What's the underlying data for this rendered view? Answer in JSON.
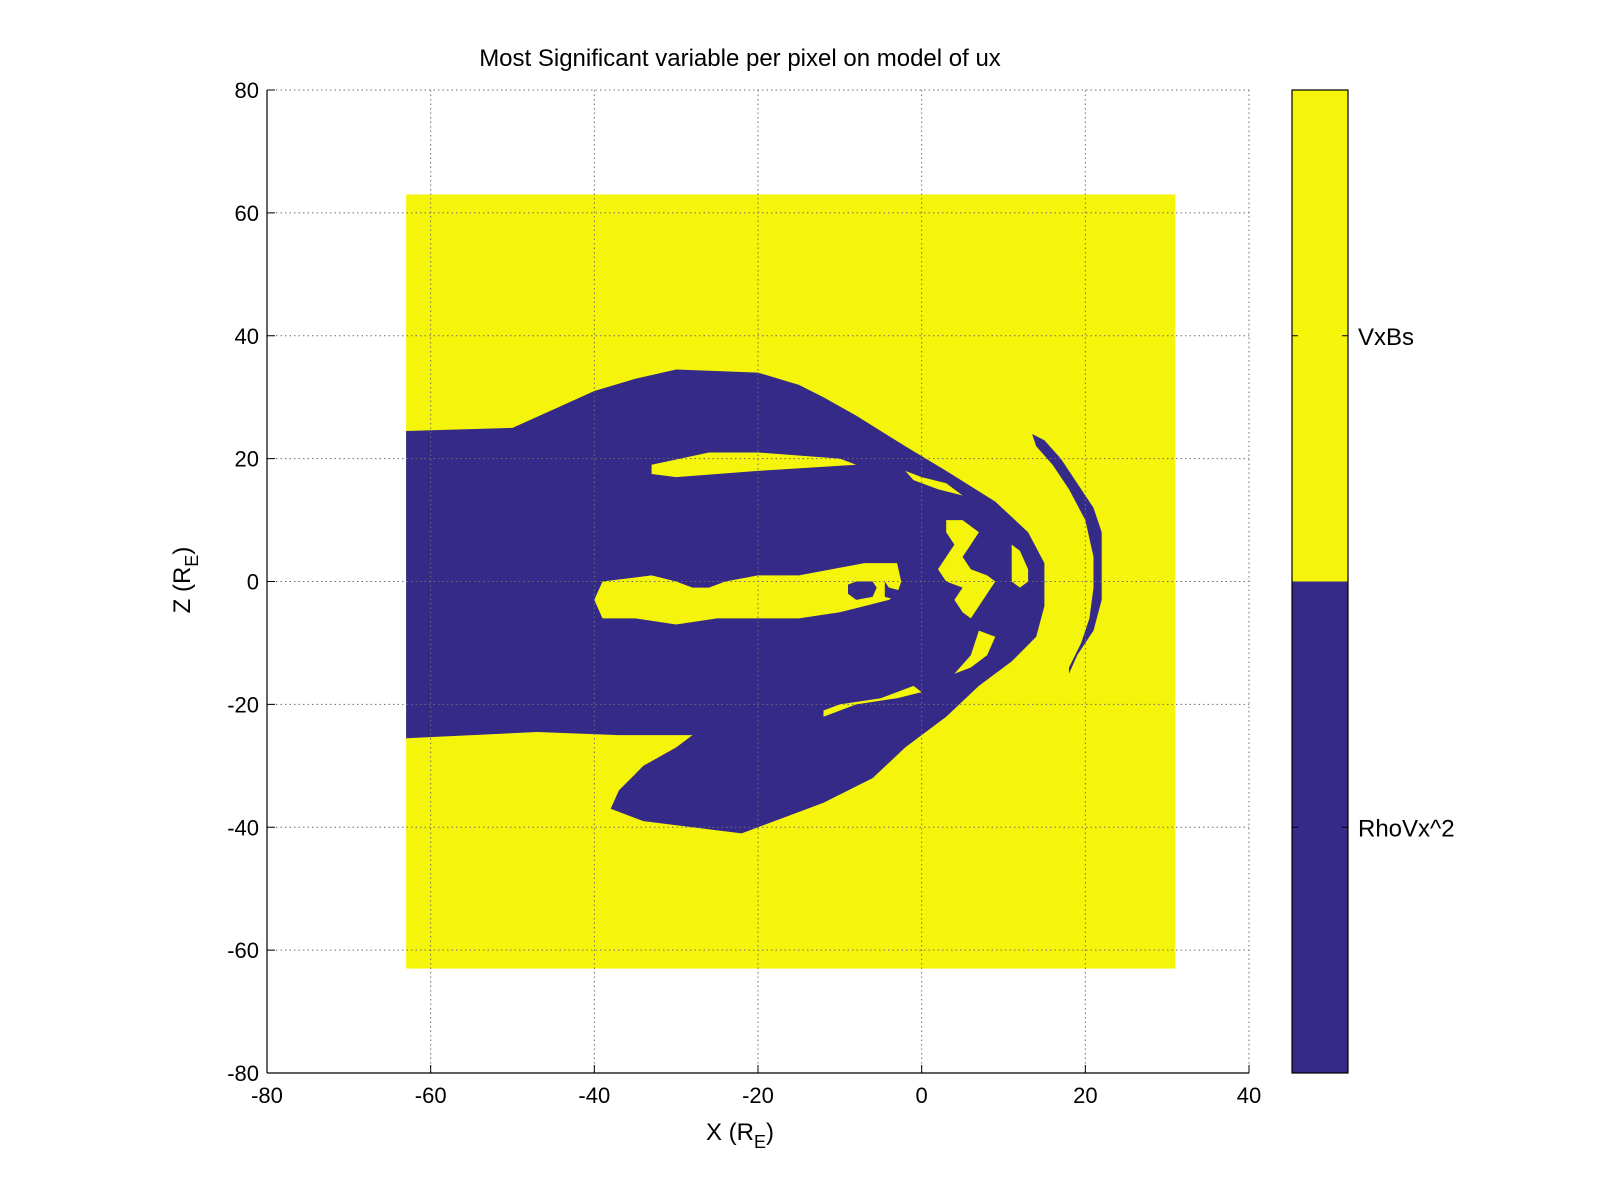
{
  "chart_data": {
    "type": "heatmap",
    "title": "Most Significant variable per pixel on model of ux",
    "xlabel": "X (R",
    "xlabel_sub": "E",
    "xlabel_end": ")",
    "ylabel": "Z (R",
    "ylabel_sub": "E",
    "ylabel_end": ")",
    "xlim": [
      -80,
      40
    ],
    "ylim": [
      -80,
      80
    ],
    "x_ticks": [
      -80,
      -60,
      -40,
      -20,
      0,
      20,
      40
    ],
    "y_ticks": [
      -80,
      -60,
      -40,
      -20,
      0,
      20,
      40,
      60,
      80
    ],
    "x_tick_labels": [
      "-80",
      "-60",
      "-40",
      "-20",
      "0",
      "20",
      "40"
    ],
    "y_tick_labels": [
      "-80",
      "-60",
      "-40",
      "-20",
      "0",
      "20",
      "40",
      "60",
      "80"
    ],
    "grid": true,
    "data_extent": {
      "x": [
        -63,
        31
      ],
      "z": [
        -63,
        63
      ]
    },
    "categories": [
      {
        "name": "VxBs",
        "color": "#f5f50c"
      },
      {
        "name": "RhoVx^2",
        "color": "#352a87"
      }
    ],
    "colorbar": {
      "labels": [
        "VxBs",
        "RhoVx^2"
      ],
      "colors": [
        "#f5f50c",
        "#352a87"
      ]
    },
    "regions": [
      {
        "category": "RhoVx^2",
        "outline": [
          [
            -63,
            24.5
          ],
          [
            -50,
            25
          ],
          [
            -45,
            28
          ],
          [
            -40,
            31
          ],
          [
            -35,
            33
          ],
          [
            -30,
            34.5
          ],
          [
            -20,
            34
          ],
          [
            -15,
            32
          ],
          [
            -12,
            30
          ],
          [
            -8,
            27
          ],
          [
            -2,
            22
          ],
          [
            3,
            18
          ],
          [
            9,
            13
          ],
          [
            13,
            8
          ],
          [
            15,
            3
          ],
          [
            15,
            -4
          ],
          [
            14,
            -9
          ],
          [
            11,
            -13
          ],
          [
            7,
            -17
          ],
          [
            3,
            -22
          ],
          [
            -2,
            -27
          ],
          [
            -6,
            -32
          ],
          [
            -12,
            -36
          ],
          [
            -18,
            -39
          ],
          [
            -22,
            -41
          ],
          [
            -28,
            -40
          ],
          [
            -34,
            -39
          ],
          [
            -38,
            -37
          ],
          [
            -37,
            -34
          ],
          [
            -34,
            -30
          ],
          [
            -30,
            -27
          ],
          [
            -28,
            -25
          ],
          [
            -37,
            -25
          ],
          [
            -47,
            -24.5
          ],
          [
            -63,
            -25.5
          ]
        ]
      },
      {
        "category": "VxBs",
        "outline": [
          [
            -40,
            -3
          ],
          [
            -39,
            0
          ],
          [
            -33,
            1
          ],
          [
            -30,
            0
          ],
          [
            -28,
            -1
          ],
          [
            -26,
            -1
          ],
          [
            -24,
            0
          ],
          [
            -20,
            1
          ],
          [
            -15,
            1
          ],
          [
            -11,
            2
          ],
          [
            -7,
            3
          ],
          [
            -3,
            3
          ],
          [
            -2.5,
            0
          ],
          [
            -3,
            -2
          ],
          [
            -4,
            -3
          ],
          [
            -7,
            -4
          ],
          [
            -10,
            -5
          ],
          [
            -15,
            -6
          ],
          [
            -20,
            -6
          ],
          [
            -25,
            -6
          ],
          [
            -30,
            -7
          ],
          [
            -35,
            -6
          ],
          [
            -39,
            -6
          ]
        ]
      },
      {
        "category": "RhoVx^2",
        "outline": [
          [
            -9,
            -0.5
          ],
          [
            -8,
            0
          ],
          [
            -6,
            0
          ],
          [
            -5.5,
            -1
          ],
          [
            -6,
            -2.5
          ],
          [
            -8,
            -3
          ],
          [
            -9,
            -2
          ]
        ]
      },
      {
        "category": "RhoVx^2",
        "outline": [
          [
            -4.5,
            0
          ],
          [
            -4,
            -1
          ],
          [
            -2.5,
            -1.5
          ],
          [
            -2,
            -2.5
          ],
          [
            -3,
            -3
          ],
          [
            -4.5,
            -2.5
          ]
        ]
      },
      {
        "category": "VxBs",
        "outline": [
          [
            -33,
            19
          ],
          [
            -26,
            21
          ],
          [
            -20,
            21
          ],
          [
            -10,
            20
          ],
          [
            -8,
            19
          ],
          [
            -20,
            18
          ],
          [
            -30,
            17
          ],
          [
            -33,
            17.5
          ]
        ]
      },
      {
        "category": "VxBs",
        "outline": [
          [
            -2,
            18
          ],
          [
            0,
            17
          ],
          [
            3,
            16
          ],
          [
            5,
            14
          ],
          [
            2,
            15
          ],
          [
            -1,
            16.5
          ]
        ]
      },
      {
        "category": "VxBs",
        "outline": [
          [
            -12,
            -21
          ],
          [
            -10,
            -20
          ],
          [
            -5,
            -19
          ],
          [
            -1,
            -17
          ],
          [
            0,
            -18
          ],
          [
            -3,
            -19
          ],
          [
            -8,
            -20
          ],
          [
            -12,
            -22
          ]
        ]
      },
      {
        "category": "VxBs",
        "outline": [
          [
            3,
            10
          ],
          [
            5,
            10
          ],
          [
            7,
            8
          ],
          [
            6,
            6
          ],
          [
            5,
            4
          ],
          [
            6,
            2
          ],
          [
            8,
            1
          ],
          [
            9,
            0
          ],
          [
            8,
            -2
          ],
          [
            7,
            -4
          ],
          [
            6,
            -6
          ],
          [
            5,
            -5
          ],
          [
            4,
            -3
          ],
          [
            5,
            -1
          ],
          [
            3,
            0
          ],
          [
            2,
            2
          ],
          [
            3,
            4
          ],
          [
            4,
            6
          ],
          [
            3,
            8
          ]
        ]
      },
      {
        "category": "VxBs",
        "outline": [
          [
            11,
            6
          ],
          [
            12,
            5
          ],
          [
            13,
            2
          ],
          [
            13,
            0
          ],
          [
            12,
            -1
          ],
          [
            11,
            0
          ],
          [
            11,
            3
          ]
        ]
      },
      {
        "category": "VxBs",
        "outline": [
          [
            7,
            -8
          ],
          [
            9,
            -9
          ],
          [
            8,
            -12
          ],
          [
            6,
            -14
          ],
          [
            4,
            -15
          ],
          [
            6,
            -12
          ]
        ]
      },
      {
        "category": "RhoVx^2",
        "outline": [
          [
            13.5,
            24
          ],
          [
            15,
            23
          ],
          [
            17,
            20
          ],
          [
            19,
            16
          ],
          [
            21,
            12
          ],
          [
            22,
            8
          ],
          [
            22,
            3
          ],
          [
            22,
            -3
          ],
          [
            21,
            -8
          ],
          [
            19,
            -12
          ],
          [
            18,
            -15
          ],
          [
            18,
            -14
          ],
          [
            19.5,
            -10
          ],
          [
            20.5,
            -6
          ],
          [
            21,
            -1
          ],
          [
            21,
            4
          ],
          [
            20,
            10
          ],
          [
            18,
            15
          ],
          [
            16,
            19
          ],
          [
            14,
            22
          ]
        ]
      }
    ]
  }
}
